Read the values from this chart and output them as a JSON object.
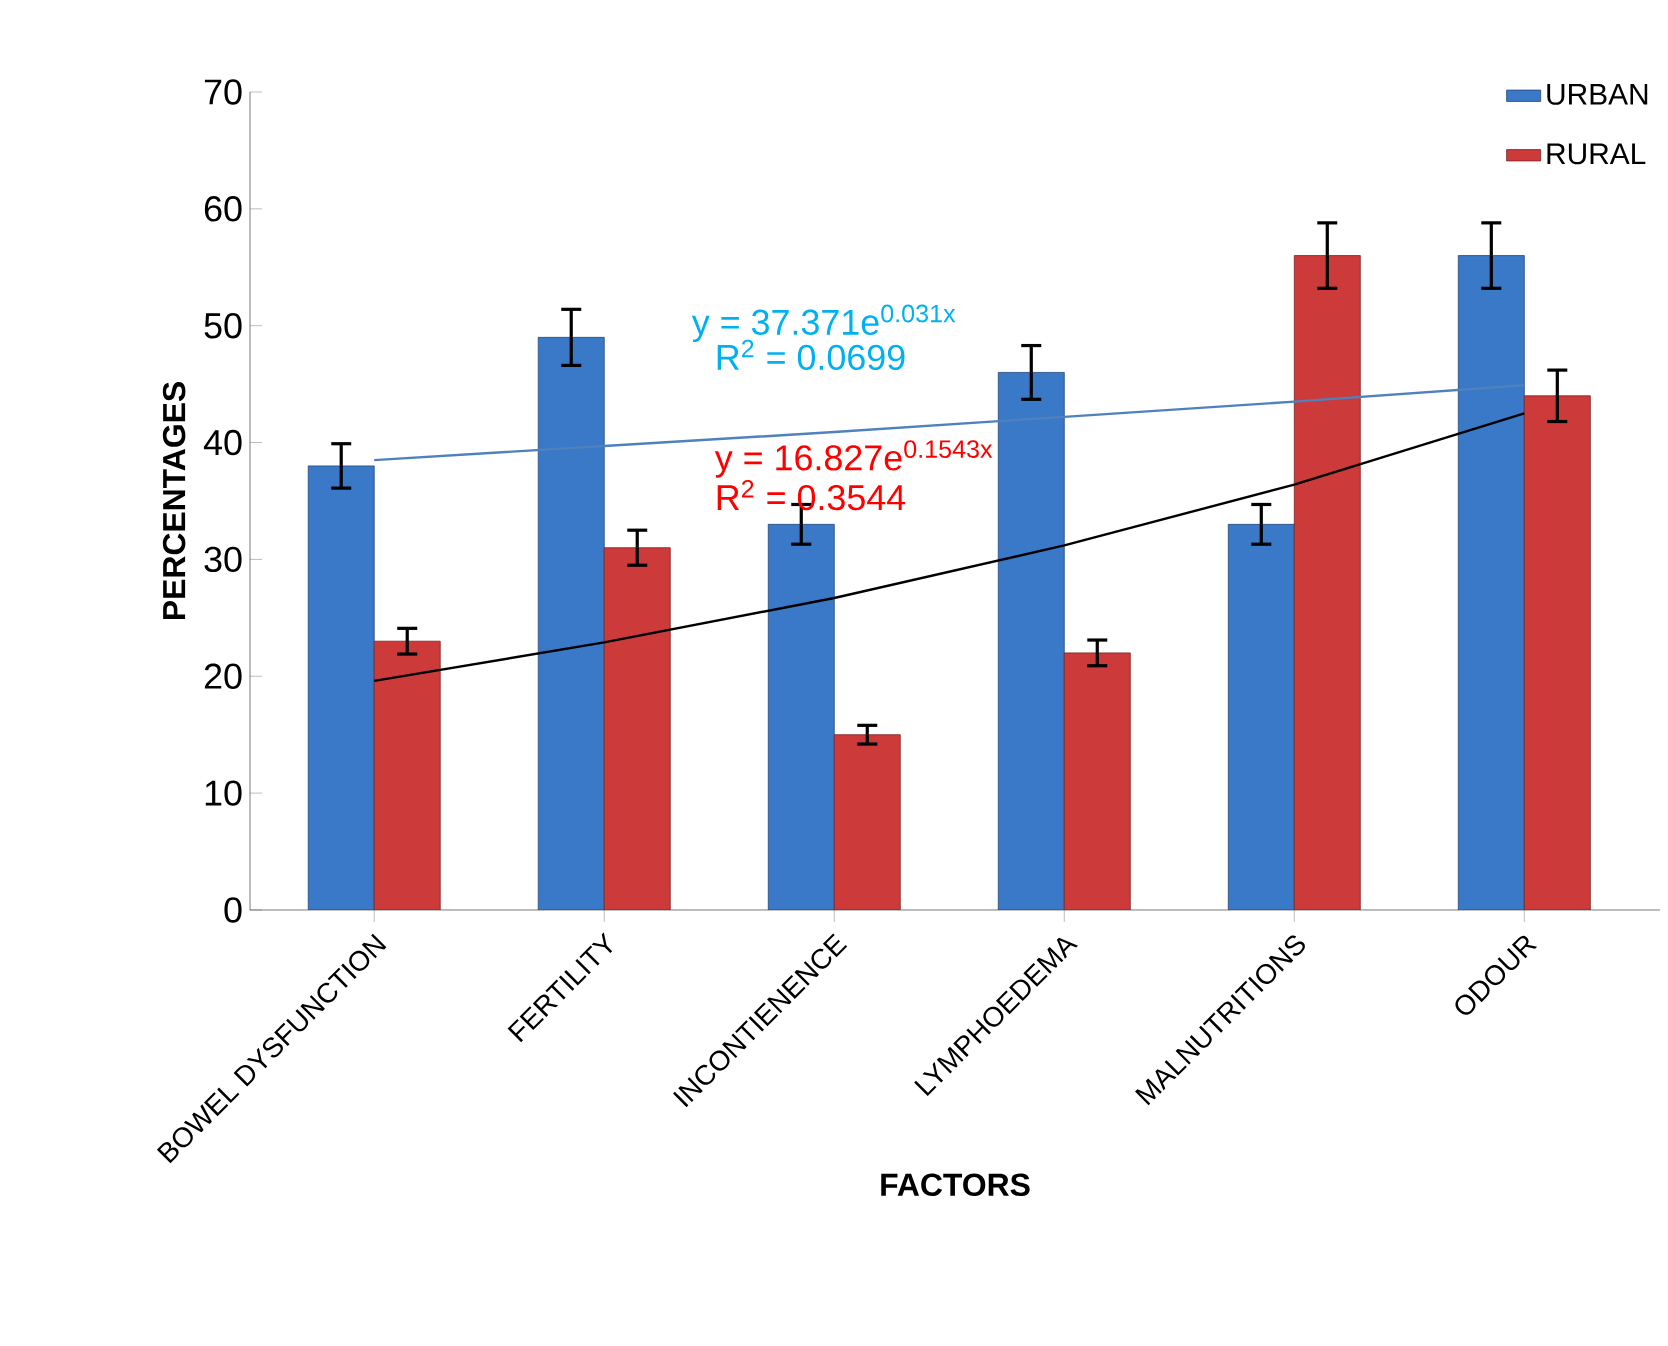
{
  "chart_data": {
    "type": "bar",
    "xlabel": "FACTORS",
    "ylabel": "PERCENTAGES",
    "categories": [
      "BOWEL DYSFUNCTION",
      "FERTILITY",
      "INCONTIENENCE",
      "LYMPHOEDEMA",
      "MALNUTRITIONS",
      "ODOUR"
    ],
    "series": [
      {
        "name": "URBAN",
        "color": "#3a78c8",
        "values": [
          38,
          49,
          33,
          46,
          33,
          56
        ],
        "errors": [
          1.9,
          2.4,
          1.7,
          2.3,
          1.7,
          2.8
        ]
      },
      {
        "name": "RURAL",
        "color": "#cc3a3a",
        "values": [
          23,
          31,
          15,
          22,
          56,
          44
        ],
        "errors": [
          1.1,
          1.5,
          0.8,
          1.1,
          2.8,
          2.2
        ]
      },
      {
        "type": "line",
        "color": "#4f81bd",
        "values": [
          38.5,
          39.7,
          40.9,
          42.2,
          43.5,
          44.9
        ]
      },
      {
        "type": "line",
        "color": "#000000",
        "values": [
          19.6,
          22.9,
          26.7,
          31.2,
          36.4,
          42.5
        ]
      }
    ],
    "ylim": [
      0,
      70
    ],
    "yticks": [
      0,
      10,
      20,
      30,
      40,
      50,
      60,
      70
    ],
    "legend": "top right",
    "grid": false,
    "marker": "none",
    "annotations": [
      "y = 37.371e$^{0.031x}$",
      "R$^{2}$ = 0.0699",
      "y = 16.827e$^{0.1543x}$",
      "R$^{2}$ = 0.3544"
    ]
  }
}
